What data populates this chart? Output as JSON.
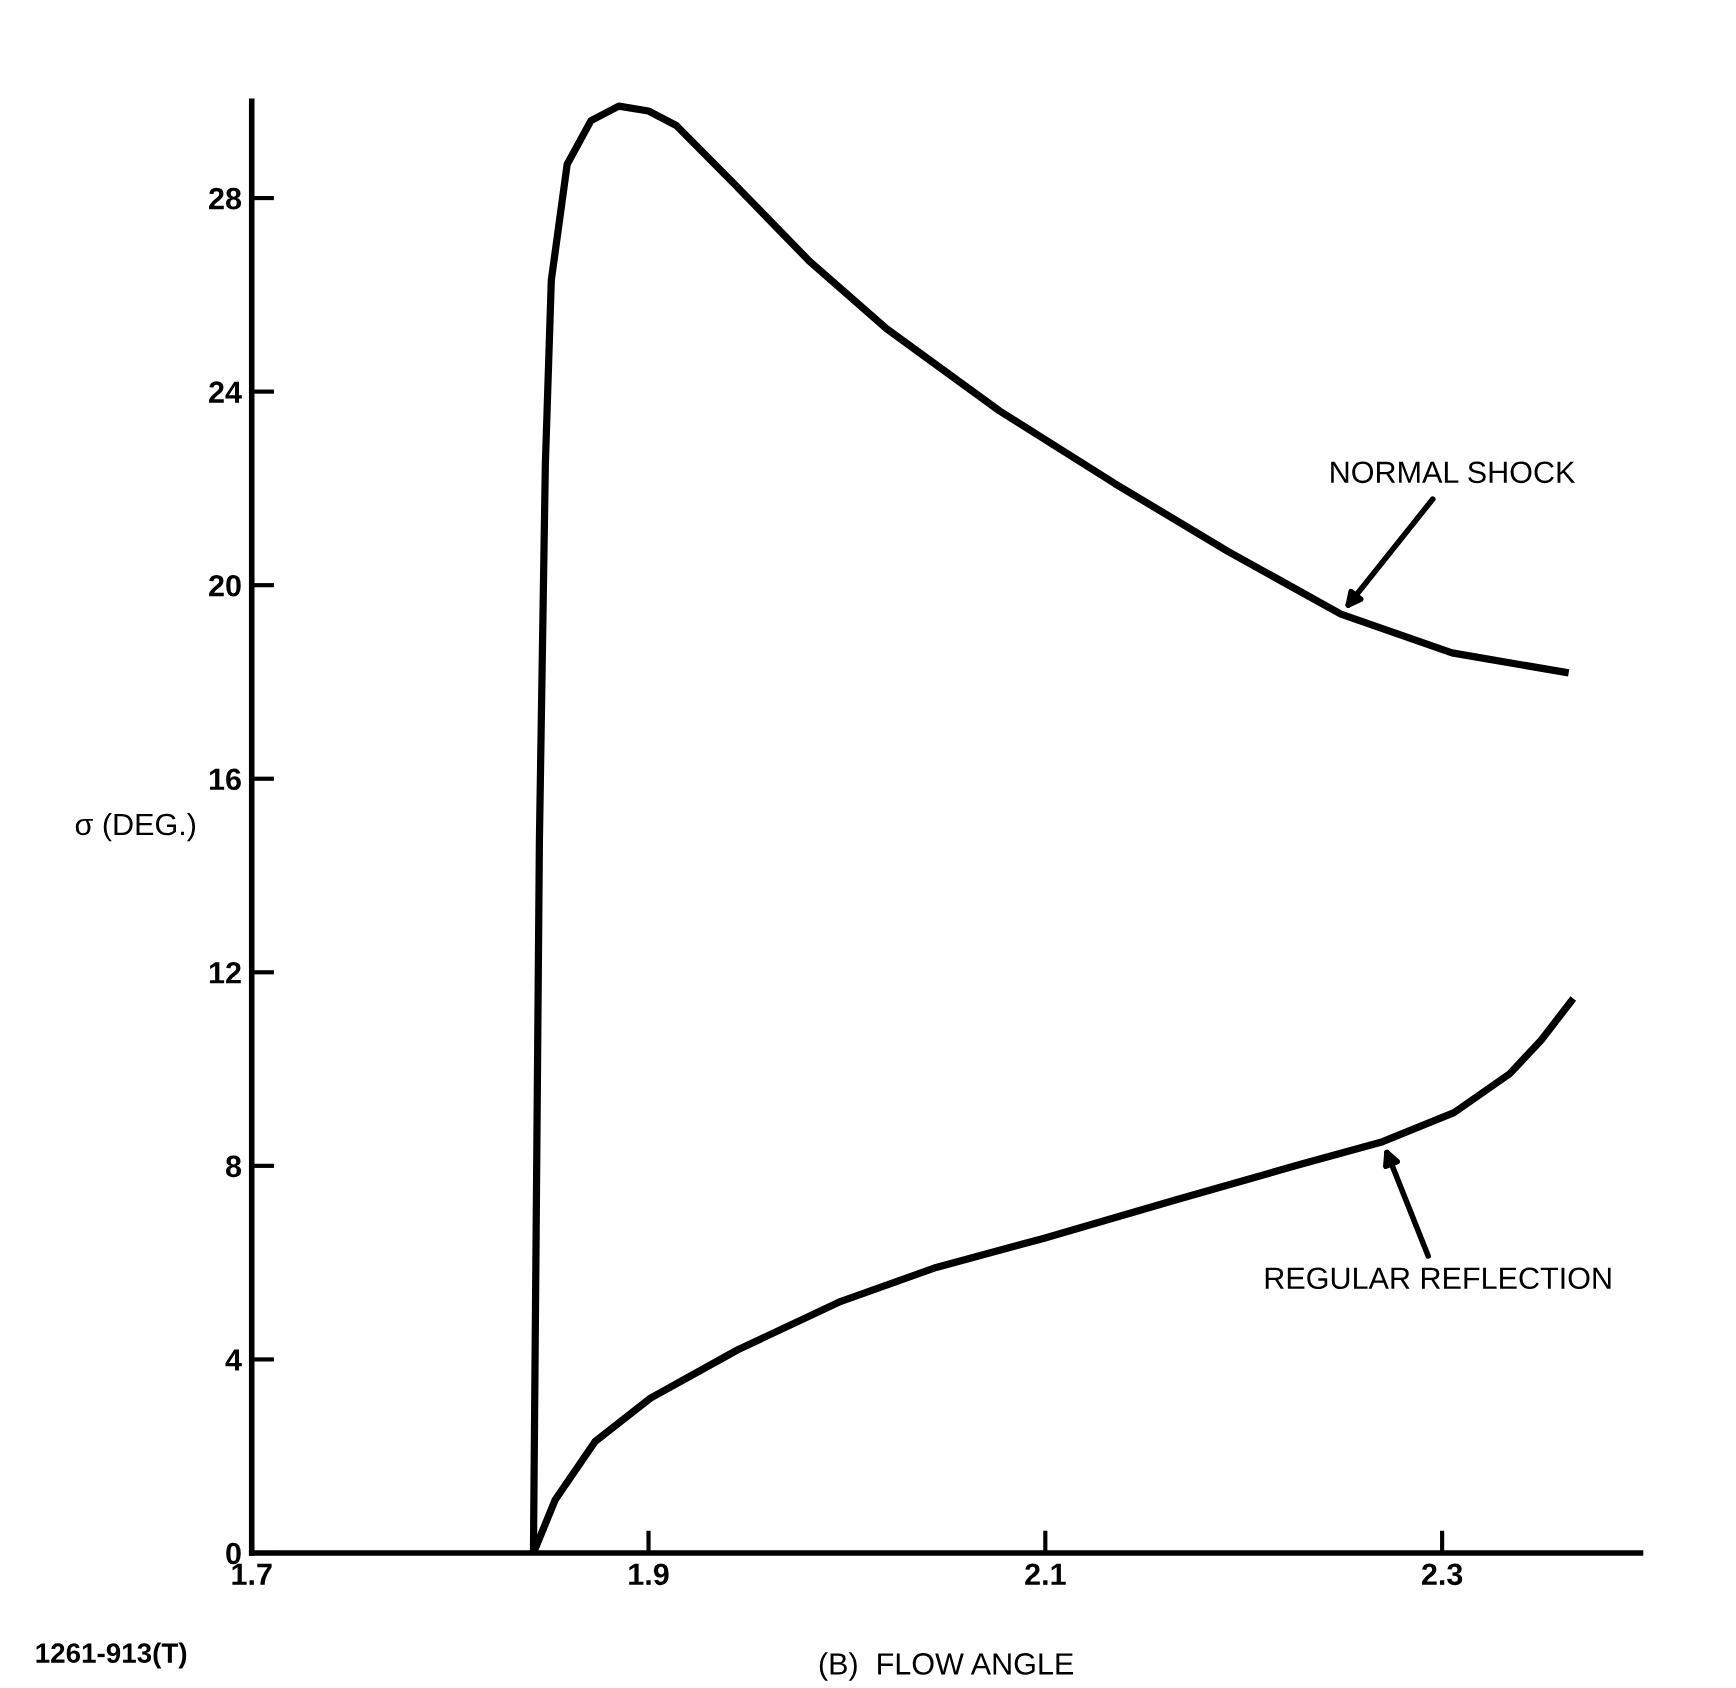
{
  "chart_data": {
    "type": "line",
    "xlabel": "(B)  FLOW ANGLE",
    "ylabel": "σ (DEG.)",
    "xlim": [
      1.7,
      2.4
    ],
    "xticks": [
      1.7,
      1.9,
      2.1,
      2.3
    ],
    "ylim": [
      0,
      30
    ],
    "yticks": [
      0,
      4,
      8,
      12,
      16,
      20,
      24,
      28
    ],
    "grid": false,
    "legend": false,
    "marker": "none",
    "line_style": "solid",
    "series": [
      {
        "color": "#000000",
        "x": [
          1.842,
          1.845,
          1.848,
          1.851,
          1.859,
          1.871,
          1.885,
          1.9,
          1.914,
          1.943,
          1.981,
          2.02,
          2.077,
          2.135,
          2.192,
          2.249,
          2.305,
          2.362
        ],
        "values": [
          0,
          14.7,
          22.5,
          26.3,
          28.7,
          29.6,
          29.9,
          29.8,
          29.5,
          28.3,
          26.7,
          25.3,
          23.6,
          22.1,
          20.7,
          19.4,
          18.6,
          18.2
        ]
      },
      {
        "color": "#000000",
        "x": [
          1.842,
          1.853,
          1.873,
          1.901,
          1.945,
          1.997,
          2.045,
          2.099,
          2.166,
          2.226,
          2.27,
          2.306,
          2.334,
          2.35,
          2.365
        ],
        "values": [
          0,
          1.1,
          2.3,
          3.2,
          4.2,
          5.2,
          5.9,
          6.5,
          7.3,
          8.0,
          8.5,
          9.1,
          9.9,
          10.6,
          11.4
        ]
      }
    ],
    "annotations": [
      {
        "text": "NORMAL SHOCK",
        "x": 2.249,
        "y": 19.4
      },
      {
        "text": "REGULAR REFLECTION",
        "x": 2.27,
        "y": 8.5
      },
      "1261-913(T)"
    ]
  }
}
